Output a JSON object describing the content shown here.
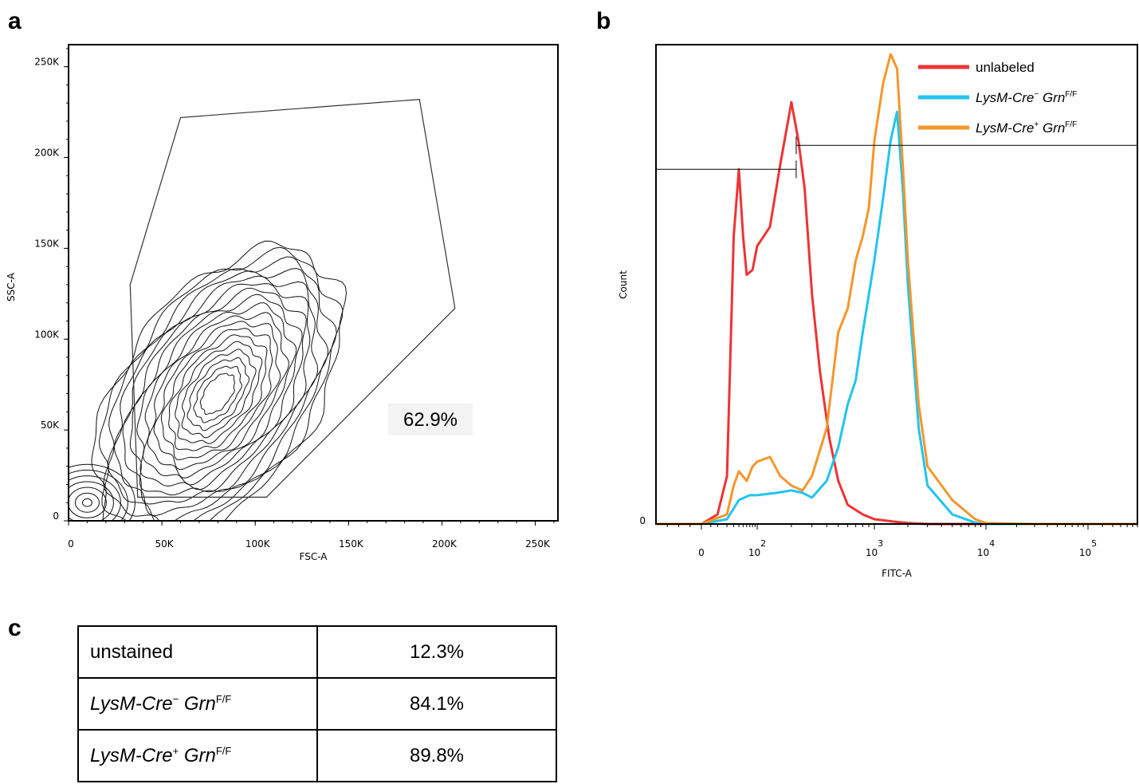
{
  "panels": {
    "a": "a",
    "b": "b",
    "c": "c"
  },
  "chart_data": [
    {
      "panel": "a",
      "type": "contour",
      "xlabel": "FSC-A",
      "ylabel": "SSC-A",
      "xlim": [
        0,
        262144
      ],
      "ylim": [
        0,
        262144
      ],
      "x_ticks": [
        {
          "v": 0,
          "label": "0"
        },
        {
          "v": 50000,
          "label": "50K"
        },
        {
          "v": 100000,
          "label": "100K"
        },
        {
          "v": 150000,
          "label": "150K"
        },
        {
          "v": 200000,
          "label": "200K"
        },
        {
          "v": 250000,
          "label": "250K"
        }
      ],
      "y_ticks": [
        {
          "v": 0,
          "label": "0"
        },
        {
          "v": 50000,
          "label": "50K"
        },
        {
          "v": 100000,
          "label": "100K"
        },
        {
          "v": 150000,
          "label": "150K"
        },
        {
          "v": 200000,
          "label": "200K"
        },
        {
          "v": 250000,
          "label": "250K"
        }
      ],
      "gate_polygon": [
        [
          33000,
          130000
        ],
        [
          60000,
          222000
        ],
        [
          188000,
          232000
        ],
        [
          207000,
          117000
        ],
        [
          106000,
          13000
        ],
        [
          37000,
          13000
        ]
      ],
      "gate_percentage": "62.9%",
      "population_center": [
        80000,
        70000
      ]
    },
    {
      "panel": "b",
      "type": "line",
      "xlabel": "FITC-A",
      "ylabel": "Count",
      "x_scale": "biexponential",
      "x_ticks": [
        {
          "v": 0,
          "label": "0",
          "sup": ""
        },
        {
          "v": 100,
          "label": "10",
          "sup": "2"
        },
        {
          "v": 1000,
          "label": "10",
          "sup": "3"
        },
        {
          "v": 10000,
          "label": "10",
          "sup": "4"
        },
        {
          "v": 100000,
          "label": "10",
          "sup": "5"
        }
      ],
      "y_ticks": [
        {
          "v": 0,
          "label": "0"
        }
      ],
      "ylim": [
        0,
        100
      ],
      "legend_position": "top-right",
      "series": [
        {
          "name": "unlabeled",
          "color": "#ee3333",
          "x": [
            -20,
            0,
            10,
            20,
            30,
            40,
            50,
            60,
            80,
            100,
            130,
            160,
            200,
            230,
            260,
            300,
            350,
            420,
            500,
            600,
            800,
            1000,
            1500,
            2000,
            3000,
            5000,
            10000,
            30000,
            100000,
            400000
          ],
          "y": [
            0,
            0,
            2,
            10,
            60,
            74,
            60,
            52,
            53,
            58,
            62,
            75,
            88,
            80,
            70,
            48,
            32,
            18,
            9,
            4,
            2,
            1,
            0.5,
            0.2,
            0,
            0,
            0,
            0,
            0,
            0
          ]
        },
        {
          "name": "LysM-Cre− Grn F/F",
          "color": "#22c4ec",
          "x": [
            -20,
            0,
            20,
            40,
            70,
            100,
            150,
            200,
            250,
            300,
            400,
            500,
            600,
            700,
            800,
            1000,
            1200,
            1400,
            1600,
            1800,
            2000,
            2500,
            3000,
            5000,
            8000,
            10000,
            30000,
            100000,
            400000
          ],
          "y": [
            0,
            0,
            1,
            5,
            6,
            6,
            6.5,
            7,
            6.5,
            5.5,
            9,
            16,
            25,
            30,
            40,
            55,
            68,
            80,
            86,
            70,
            50,
            20,
            8,
            2,
            0.3,
            0,
            0,
            0,
            0
          ]
        },
        {
          "name": "LysM-Cre+ Grn F/F",
          "color": "#f5962a",
          "x": [
            -20,
            0,
            20,
            30,
            40,
            60,
            80,
            100,
            130,
            160,
            200,
            250,
            300,
            400,
            500,
            600,
            700,
            800,
            900,
            1000,
            1200,
            1400,
            1600,
            1800,
            2000,
            2500,
            3000,
            5000,
            8000,
            10000,
            30000,
            100000,
            400000
          ],
          "y": [
            0,
            0,
            2,
            8,
            11,
            9,
            12,
            13,
            14,
            10,
            8,
            7,
            10,
            20,
            40,
            45,
            55,
            60,
            66,
            80,
            92,
            98,
            95,
            75,
            55,
            25,
            12,
            5,
            1,
            0.2,
            0,
            0,
            0
          ]
        }
      ],
      "gates": [
        {
          "x1": -20,
          "x2": 220,
          "y": 74
        },
        {
          "x1": 220,
          "x2": 400000,
          "y": 79
        }
      ]
    },
    {
      "panel": "c",
      "type": "table",
      "rows": [
        {
          "name": "unstained",
          "italic": "",
          "sup": "",
          "value": "12.3%"
        },
        {
          "name": "",
          "italic_gene": "LysM-Cre",
          "gene_sup": "−",
          "italic": "Grn",
          "sup": "F/F",
          "value": "84.1%"
        },
        {
          "name": "",
          "italic_gene": "LysM-Cre",
          "gene_sup": "+",
          "italic": "Grn",
          "sup": "F/F",
          "value": "89.8%"
        }
      ]
    }
  ],
  "legend": [
    {
      "plain": "unlabeled",
      "italic_gene": "",
      "gene_sup": "",
      "italic": "",
      "sup": "",
      "color": "#ee3333"
    },
    {
      "plain": "",
      "italic_gene": "LysM-Cre",
      "gene_sup": "−",
      "italic": "Grn",
      "sup": "F/F",
      "color": "#22c4ec"
    },
    {
      "plain": "",
      "italic_gene": "LysM-Cre",
      "gene_sup": "+",
      "italic": "Grn",
      "sup": "F/F",
      "color": "#f5962a"
    }
  ]
}
